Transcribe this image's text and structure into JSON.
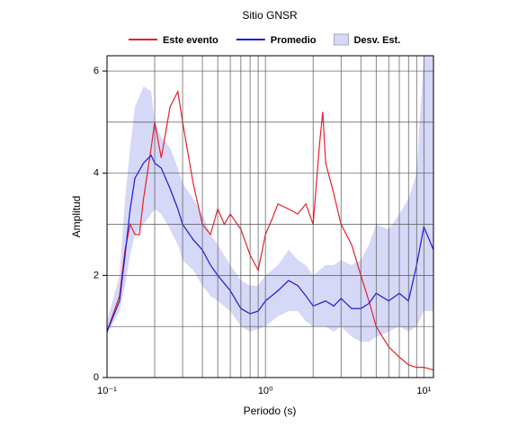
{
  "chart_data": {
    "type": "line",
    "title": "Sitio GNSR",
    "x_label": "Periodo (s)",
    "y_label": "Amplitud",
    "x_log": true,
    "xlim": [
      0.1,
      11.5
    ],
    "ylim": [
      0,
      6.3
    ],
    "xticks": [
      {
        "value": 0.1,
        "label": "10⁻¹"
      },
      {
        "value": 1,
        "label": "10⁰"
      },
      {
        "value": 10,
        "label": "10¹"
      }
    ],
    "xgrid": [
      0.2,
      0.3,
      0.4,
      0.5,
      0.6,
      0.7,
      0.8,
      0.9,
      2,
      3,
      4,
      5,
      6,
      7,
      8,
      9
    ],
    "yticks": [
      0,
      2,
      4,
      6
    ],
    "ygrid": [
      1,
      3,
      5
    ],
    "series": [
      {
        "name": "Este evento",
        "color": "#e8202a",
        "x": [
          0.1,
          0.12,
          0.13,
          0.14,
          0.15,
          0.16,
          0.17,
          0.19,
          0.2,
          0.22,
          0.25,
          0.28,
          0.3,
          0.35,
          0.4,
          0.45,
          0.5,
          0.55,
          0.6,
          0.7,
          0.8,
          0.9,
          1,
          1.1,
          1.2,
          1.4,
          1.6,
          1.8,
          2,
          2.2,
          2.3,
          2.4,
          2.7,
          3,
          3.5,
          4,
          4.5,
          5,
          6,
          7,
          8,
          9,
          10,
          11.5
        ],
        "values": [
          0.9,
          1.6,
          2.5,
          3.0,
          2.8,
          2.8,
          3.5,
          4.5,
          5.0,
          4.3,
          5.3,
          5.6,
          5.0,
          3.8,
          3.0,
          2.8,
          3.3,
          3.0,
          3.2,
          2.9,
          2.4,
          2.1,
          2.8,
          3.1,
          3.4,
          3.3,
          3.2,
          3.4,
          3.0,
          4.6,
          5.2,
          4.2,
          3.6,
          3.0,
          2.6,
          2.0,
          1.5,
          1.0,
          0.6,
          0.4,
          0.25,
          0.2,
          0.2,
          0.15
        ]
      },
      {
        "name": "Promedio",
        "color": "#1a1adc",
        "x": [
          0.1,
          0.12,
          0.13,
          0.14,
          0.15,
          0.17,
          0.19,
          0.2,
          0.22,
          0.25,
          0.28,
          0.3,
          0.35,
          0.4,
          0.45,
          0.5,
          0.6,
          0.7,
          0.8,
          0.9,
          1,
          1.2,
          1.4,
          1.6,
          1.8,
          2,
          2.4,
          2.7,
          3,
          3.5,
          4,
          4.5,
          5,
          6,
          7,
          8,
          9,
          10,
          11.5
        ],
        "values": [
          0.9,
          1.5,
          2.4,
          3.3,
          3.9,
          4.2,
          4.35,
          4.2,
          4.1,
          3.7,
          3.3,
          3.0,
          2.7,
          2.5,
          2.2,
          2.0,
          1.7,
          1.35,
          1.25,
          1.3,
          1.5,
          1.7,
          1.9,
          1.8,
          1.6,
          1.4,
          1.5,
          1.4,
          1.55,
          1.35,
          1.35,
          1.45,
          1.65,
          1.5,
          1.65,
          1.5,
          2.2,
          2.95,
          2.5
        ]
      },
      {
        "name": "Desv. Est.",
        "color": "#d6d8f7",
        "type": "band",
        "x": [
          0.1,
          0.12,
          0.13,
          0.14,
          0.15,
          0.17,
          0.19,
          0.2,
          0.22,
          0.25,
          0.28,
          0.3,
          0.35,
          0.4,
          0.45,
          0.5,
          0.6,
          0.7,
          0.8,
          0.9,
          1,
          1.2,
          1.4,
          1.6,
          1.8,
          2,
          2.4,
          2.7,
          3,
          3.5,
          4,
          4.5,
          5,
          6,
          7,
          8,
          9,
          10,
          11.5
        ],
        "upper": [
          1.1,
          2.0,
          3.5,
          4.5,
          5.3,
          5.7,
          5.6,
          5.0,
          4.7,
          4.5,
          4.1,
          3.8,
          3.5,
          3.2,
          2.8,
          2.6,
          2.2,
          1.9,
          1.8,
          1.8,
          2.0,
          2.2,
          2.5,
          2.3,
          2.2,
          2.0,
          2.2,
          2.2,
          2.3,
          2.2,
          2.3,
          2.6,
          3.0,
          2.9,
          3.2,
          3.5,
          4.0,
          6.3,
          6.3
        ],
        "lower": [
          0.85,
          1.3,
          1.8,
          2.4,
          2.8,
          3.0,
          3.2,
          3.3,
          3.2,
          2.9,
          2.6,
          2.3,
          2.1,
          1.8,
          1.6,
          1.5,
          1.3,
          1.0,
          0.9,
          0.95,
          1.0,
          1.2,
          1.3,
          1.3,
          1.1,
          1.0,
          1.0,
          0.9,
          1.0,
          0.8,
          0.7,
          0.7,
          0.8,
          0.9,
          1.0,
          0.9,
          1.0,
          1.3,
          1.3
        ]
      }
    ]
  }
}
